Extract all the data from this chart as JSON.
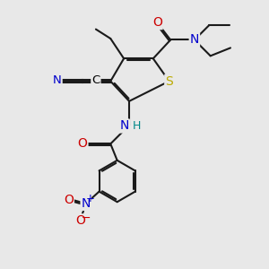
{
  "bg_color": "#e8e8e8",
  "bond_color": "#1a1a1a",
  "bond_width": 1.5,
  "dbo": 0.055,
  "atom_colors": {
    "C": "#000000",
    "N": "#0000cc",
    "O": "#cc0000",
    "S": "#bbaa00",
    "H": "#008888"
  },
  "fs": 9.5
}
